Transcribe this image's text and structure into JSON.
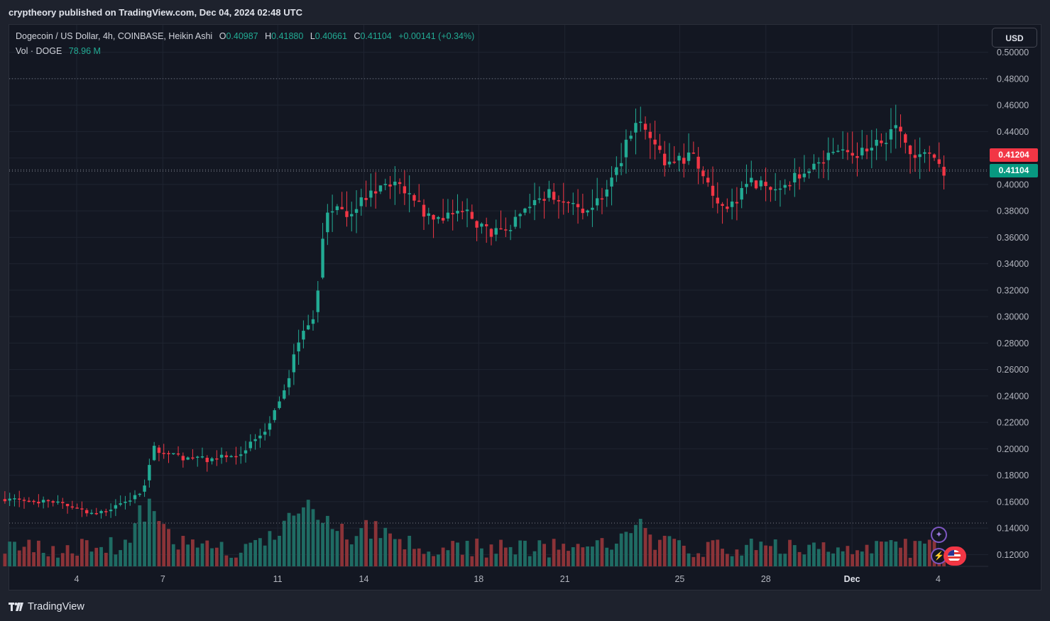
{
  "header": {
    "publish_line": "cryptheory published on TradingView.com, Dec 04, 2024 02:48 UTC"
  },
  "legend": {
    "title": "Dogecoin / US Dollar, 4h, COINBASE, Heikin Ashi",
    "open_label": "O",
    "open": "0.40987",
    "high_label": "H",
    "high": "0.41880",
    "low_label": "L",
    "low": "0.40661",
    "close_label": "C",
    "close": "0.41104",
    "change": "+0.00141 (+0.34%)",
    "volume_label": "Vol · DOGE",
    "volume": "78.96 M"
  },
  "currency_button": "USD",
  "price_labels": {
    "prev_close": "0.41204",
    "last": "0.41104"
  },
  "footer": {
    "logo_text": "TradingView"
  },
  "badges": {
    "star_icon": "✦",
    "bolt_icon": "⚡"
  },
  "colors": {
    "up": "#22ab94",
    "down": "#f23645",
    "up_volume": "#1f6b63",
    "down_volume": "#8b3338",
    "background": "#131722",
    "grid": "#1f2431",
    "axis_text": "#b2b5be"
  },
  "chart_data": {
    "type": "candlestick",
    "chart_style": "Heikin Ashi",
    "symbol": "Dogecoin / US Dollar",
    "interval": "4h",
    "exchange": "COINBASE",
    "y_axis": {
      "ticks": [
        "0.50000",
        "0.48000",
        "0.46000",
        "0.44000",
        "0.42000",
        "0.40000",
        "0.38000",
        "0.36000",
        "0.34000",
        "0.32000",
        "0.30000",
        "0.28000",
        "0.26000",
        "0.24000",
        "0.22000",
        "0.20000",
        "0.18000",
        "0.16000",
        "0.14000",
        "0.12000"
      ],
      "range": [
        0.108,
        0.503
      ]
    },
    "x_axis": {
      "ticks": [
        "4",
        "7",
        "11",
        "14",
        "18",
        "21",
        "25",
        "28",
        "Dec",
        "4"
      ]
    },
    "grid": true,
    "reference_lines": [
      0.48,
      0.41104,
      0.41
    ],
    "series": [
      {
        "name": "DOGE/USD",
        "anchors": [
          [
            "Nov 2",
            0.1625
          ],
          [
            "Nov 3",
            0.158
          ],
          [
            "Nov 4",
            0.1505
          ],
          [
            "Nov 5",
            0.158
          ],
          [
            "Nov 6",
            0.168
          ],
          [
            "Nov 6",
            0.2
          ],
          [
            "Nov 7",
            0.1935
          ],
          [
            "Nov 8",
            0.192
          ],
          [
            "Nov 9",
            0.194
          ],
          [
            "Nov 10",
            0.21
          ],
          [
            "Nov 11",
            0.25
          ],
          [
            "Nov 11",
            0.28
          ],
          [
            "Nov 12",
            0.3
          ],
          [
            "Nov 12",
            0.38
          ],
          [
            "Nov 13",
            0.38
          ],
          [
            "Nov 14",
            0.4
          ],
          [
            "Nov 15",
            0.395
          ],
          [
            "Nov 16",
            0.37
          ],
          [
            "Nov 17",
            0.38
          ],
          [
            "Nov 18",
            0.362
          ],
          [
            "Nov 19",
            0.375
          ],
          [
            "Nov 20",
            0.395
          ],
          [
            "Nov 21",
            0.38
          ],
          [
            "Nov 22",
            0.395
          ],
          [
            "Nov 23",
            0.44
          ],
          [
            "Nov 23",
            0.445
          ],
          [
            "Nov 24",
            0.415
          ],
          [
            "Nov 25",
            0.42
          ],
          [
            "Nov 26",
            0.38
          ],
          [
            "Nov 27",
            0.4
          ],
          [
            "Nov 28",
            0.4
          ],
          [
            "Nov 29",
            0.41
          ],
          [
            "Nov 30",
            0.423
          ],
          [
            "Dec 1",
            0.423
          ],
          [
            "Dec 2",
            0.44
          ],
          [
            "Dec 3",
            0.42
          ],
          [
            "Dec 3",
            0.42
          ],
          [
            "Dec 4",
            0.411
          ]
        ]
      }
    ],
    "volume_series": {
      "name": "Vol · DOGE",
      "last": "78.96 M",
      "peak_days": [
        "Nov 6",
        "Nov 11",
        "Nov 12",
        "Nov 14",
        "Nov 23"
      ]
    }
  }
}
